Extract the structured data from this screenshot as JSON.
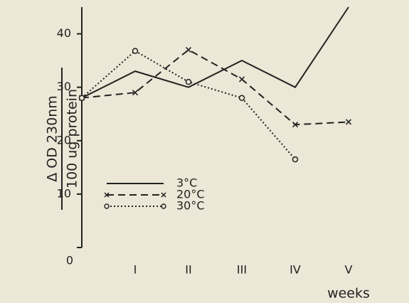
{
  "chart_data": {
    "type": "line",
    "y_label_top": "Δ OD 230nm",
    "y_label_bottom": "100 ug protein",
    "x_label": "weeks",
    "x": [
      0,
      1,
      2,
      3,
      4,
      5
    ],
    "xlim": [
      0,
      6
    ],
    "xticks": [
      {
        "value": 1,
        "label": "I"
      },
      {
        "value": 2,
        "label": "II"
      },
      {
        "value": 3,
        "label": "III"
      },
      {
        "value": 4,
        "label": "IV"
      },
      {
        "value": 5,
        "label": "V"
      }
    ],
    "ylim": [
      0,
      45
    ],
    "yticks": [
      0,
      10,
      20,
      30,
      40
    ],
    "legend": "lower-left",
    "series": [
      {
        "name": "3°C",
        "color": "#222222",
        "dash": "solid",
        "marker": "none",
        "values": [
          28,
          33,
          30,
          35,
          30,
          45
        ]
      },
      {
        "name": "20°C",
        "color": "#222222",
        "dash": "dashed",
        "marker": "x",
        "values": [
          28,
          29,
          37,
          31.5,
          23,
          23.5
        ]
      },
      {
        "name": "30°C",
        "color": "#222222",
        "dash": "dotted",
        "marker": "o",
        "values": [
          28,
          36.8,
          31,
          28,
          16.5,
          null
        ]
      }
    ]
  }
}
